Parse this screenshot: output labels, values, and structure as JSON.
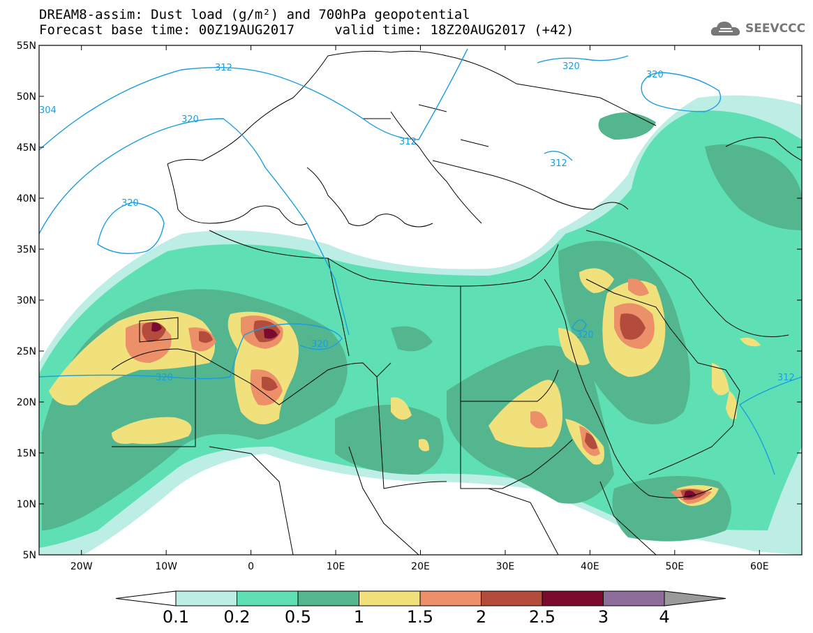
{
  "title": {
    "line1": "DREAM8-assim: Dust load (g/m²) and 700hPa geopotential",
    "line2": "Forecast base time: 00Z19AUG2017     valid time: 18Z20AUG2017 (+42)"
  },
  "logo": {
    "text": "SEEVCCC",
    "icon": "cloud-icon"
  },
  "map": {
    "lat_labels": [
      "55N",
      "50N",
      "45N",
      "40N",
      "35N",
      "30N",
      "25N",
      "20N",
      "15N",
      "10N",
      "5N"
    ],
    "lon_labels": [
      "20W",
      "10W",
      "0",
      "10E",
      "20E",
      "30E",
      "40E",
      "50E",
      "60E"
    ],
    "lat_range": [
      5,
      55
    ],
    "lon_range": [
      -25,
      65
    ],
    "contour_labels": [
      "312",
      "320",
      "304",
      "320",
      "320",
      "312",
      "320",
      "320",
      "312",
      "320",
      "320",
      "312"
    ],
    "colors": {
      "contour": "#1a9ee0",
      "land_border": "#000000",
      "level_0.1": "#bdeee6",
      "level_0.2": "#5fe0b4",
      "level_0.5": "#53b68e",
      "level_1": "#f0e17c",
      "level_1.5": "#eb9068",
      "level_2": "#b34c3c",
      "level_2.5": "#7a0b2e",
      "level_3": "#8e6d9b",
      "level_4": "#9a9a9a"
    }
  },
  "colorbar": {
    "labels": [
      "0.1",
      "0.2",
      "0.5",
      "1",
      "1.5",
      "2",
      "2.5",
      "3",
      "4"
    ],
    "colors": [
      "#bdeee6",
      "#5fe0b4",
      "#53b68e",
      "#f0e17c",
      "#eb9068",
      "#b34c3c",
      "#7a0b2e",
      "#8e6d9b"
    ],
    "under_color": "#ffffff",
    "over_color": "#9a9a9a"
  }
}
